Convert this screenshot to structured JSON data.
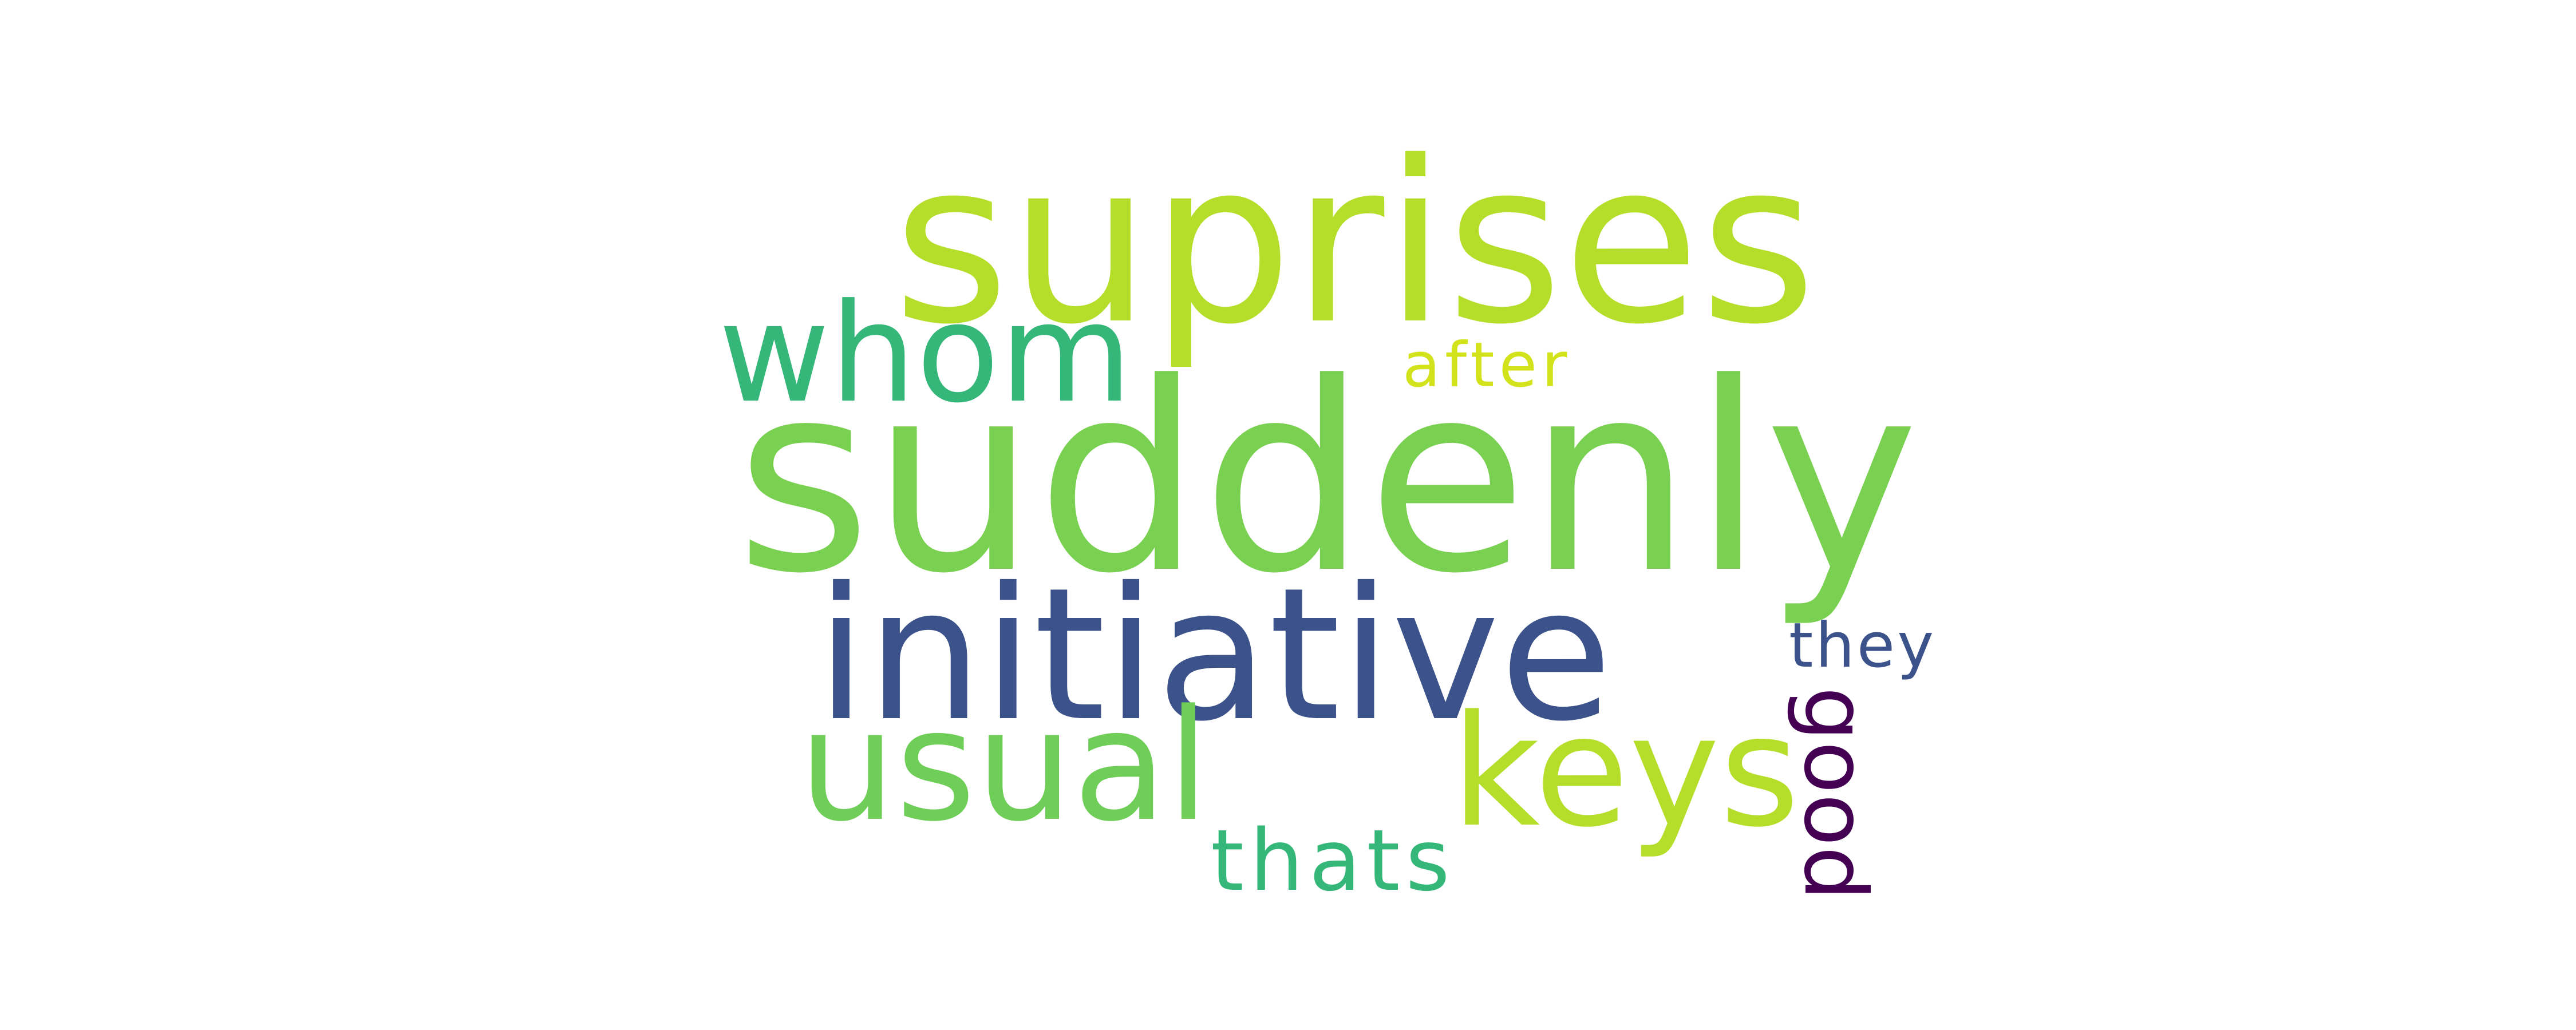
{
  "words": {
    "suprises": {
      "text": "suprises",
      "color": "#b5de2b"
    },
    "suddenly": {
      "text": "suddenly",
      "color": "#7ad151"
    },
    "whom": {
      "text": "whom",
      "color": "#35b779"
    },
    "after": {
      "text": "after",
      "color": "#d2e21b"
    },
    "initiative": {
      "text": "initiative",
      "color": "#3b528b"
    },
    "they": {
      "text": "they",
      "color": "#3b528b"
    },
    "keys": {
      "text": "keys",
      "color": "#b5de2b"
    },
    "usual": {
      "text": "usual",
      "color": "#6ece58"
    },
    "thats": {
      "text": "thats",
      "color": "#35b779"
    },
    "good": {
      "text": "good",
      "color": "#440154"
    }
  }
}
